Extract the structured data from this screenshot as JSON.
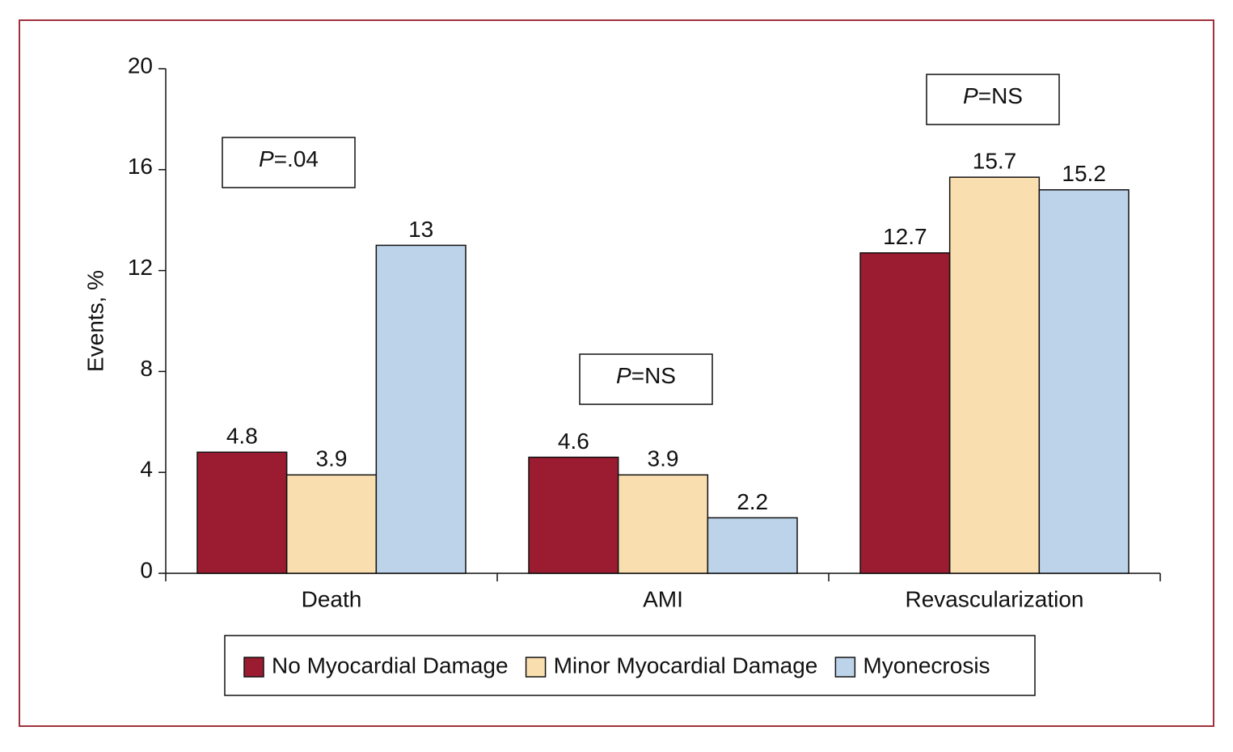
{
  "chart_data": {
    "type": "bar",
    "y_label": "Events, %",
    "categories": [
      "Death",
      "AMI",
      "Revascularization"
    ],
    "series": [
      {
        "name": "No Myocardial Damage",
        "color": "#9b1c31",
        "values": [
          4.8,
          4.6,
          12.7
        ]
      },
      {
        "name": "Minor Myocardial Damage",
        "color": "#f9deb0",
        "values": [
          3.9,
          3.9,
          15.7
        ]
      },
      {
        "name": "Myonecrosis",
        "color": "#bcd3ea",
        "values": [
          13,
          2.2,
          15.2
        ]
      }
    ],
    "annotations": [
      "P=.04",
      "P=NS",
      "P=NS"
    ],
    "ylim": [
      0,
      20
    ],
    "yticks": [
      0,
      4,
      8,
      12,
      16,
      20
    ]
  }
}
